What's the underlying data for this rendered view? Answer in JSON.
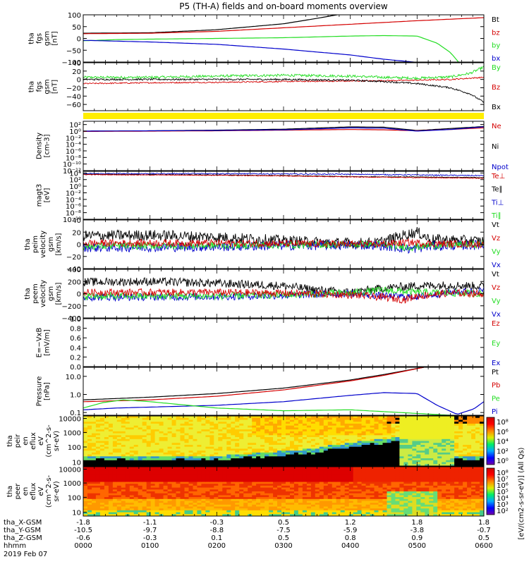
{
  "title": "P5 (TH-A) fields and on-board moments overview",
  "colors": {
    "black": "#000000",
    "red": "#d40000",
    "green": "#22dd22",
    "blue": "#0000cc",
    "yellow": "#ffee00"
  },
  "date": "2019 Feb 07",
  "ephemeris": {
    "labels": [
      "tha_X-GSM",
      "tha_Y-GSM",
      "tha_Z-GSM",
      "hhmm"
    ],
    "x": [
      "-1.8",
      "-1.1",
      "-0.3",
      "0.5",
      "1.2",
      "1.8",
      "1.8"
    ],
    "y": [
      "-10.5",
      "-9.7",
      "-8.8",
      "-7.5",
      "-5.9",
      "-3.8",
      "-0.7"
    ],
    "z": [
      "-0.6",
      "-0.3",
      "0.1",
      "0.5",
      "0.8",
      "0.9",
      "0.5"
    ],
    "hhmm": [
      "0000",
      "0100",
      "0200",
      "0300",
      "0400",
      "0500",
      "0600"
    ]
  },
  "colorbar_label": "[eV/(cm2-s-sr-eV)] (All Qs)",
  "chart_data": [
    {
      "type": "line",
      "name": "fgs",
      "ylabel": [
        "tha",
        "fgs",
        "gsm",
        "[nT]"
      ],
      "ylim": [
        -100,
        100
      ],
      "yticks": [
        "100",
        "50",
        "0",
        "−50",
        "−100"
      ],
      "legend": [
        {
          "t": "Bt",
          "c": "#000000"
        },
        {
          "t": "bz",
          "c": "#d40000"
        },
        {
          "t": "by",
          "c": "#22dd22"
        },
        {
          "t": "bx",
          "c": "#0000cc"
        }
      ],
      "series": [
        {
          "name": "Bt",
          "color": "#000000",
          "x": [
            0,
            1,
            2,
            3,
            3.5,
            4,
            4.4
          ],
          "y": [
            22,
            24,
            37,
            62,
            85,
            110,
            140
          ]
        },
        {
          "name": "bz",
          "color": "#d40000",
          "x": [
            0,
            1,
            2,
            3,
            4,
            5,
            6
          ],
          "y": [
            20,
            22,
            30,
            45,
            60,
            75,
            88
          ]
        },
        {
          "name": "by",
          "color": "#22dd22",
          "x": [
            0,
            0.5,
            1,
            2,
            3,
            4,
            4.5,
            5,
            5.3,
            5.5,
            5.65
          ],
          "y": [
            -10,
            -5,
            -3,
            0,
            3,
            10,
            12,
            10,
            -20,
            -60,
            -110
          ]
        },
        {
          "name": "bx",
          "color": "#0000cc",
          "x": [
            0,
            1,
            2,
            3,
            4,
            4.5,
            4.95
          ],
          "y": [
            -8,
            -15,
            -25,
            -45,
            -70,
            -88,
            -100
          ]
        }
      ]
    },
    {
      "type": "line",
      "name": "fgm",
      "ylabel": [
        "tha",
        "fgs",
        "gsm",
        "[nT]"
      ],
      "ylim": [
        -75,
        40
      ],
      "yticks": [
        "40",
        "20",
        "0",
        "−20",
        "−40",
        "−60"
      ],
      "legend": [
        {
          "t": "By",
          "c": "#22dd22"
        },
        {
          "t": "Bz",
          "c": "#d40000"
        },
        {
          "t": "Bx",
          "c": "#000000"
        }
      ],
      "series": [
        {
          "name": "By",
          "color": "#22dd22",
          "x": [
            0,
            1,
            2,
            3,
            4,
            4.5,
            5,
            5.5,
            5.8,
            6
          ],
          "y": [
            5,
            5,
            8,
            10,
            8,
            5,
            3,
            6,
            15,
            30
          ],
          "noise": 3
        },
        {
          "name": "Bz",
          "color": "#d40000",
          "x": [
            0,
            1,
            2,
            3,
            4,
            5,
            5.5,
            6
          ],
          "y": [
            -10,
            -8,
            -7,
            -5,
            -4,
            -2,
            0,
            5
          ],
          "noise": 1.5
        },
        {
          "name": "Bx",
          "color": "#000000",
          "x": [
            0,
            1,
            2,
            3,
            4,
            4.5,
            5,
            5.5,
            5.8,
            6
          ],
          "y": [
            0,
            0,
            0,
            0,
            -2,
            -5,
            -10,
            -20,
            -35,
            -55
          ],
          "noise": 2
        }
      ]
    },
    {
      "type": "line",
      "name": "density",
      "ylabel": [
        "Density",
        "[cm-3]"
      ],
      "ylim": [
        -12,
        3
      ],
      "log": true,
      "yticks": [
        "10²",
        "10⁰",
        "10⁻²",
        "10⁻⁴",
        "10⁻⁶",
        "10⁻⁸",
        "10⁻¹⁰",
        "10⁻¹²"
      ],
      "legend": [
        {
          "t": "Ne",
          "c": "#d40000"
        },
        {
          "t": "Ni",
          "c": "#000000"
        },
        {
          "t": "Npot",
          "c": "#0000cc"
        }
      ],
      "series": [
        {
          "name": "Ni",
          "color": "#000000",
          "x": [
            0,
            1,
            2,
            3,
            4,
            4.5,
            5,
            5.5,
            6
          ],
          "y": [
            0,
            0.1,
            0.3,
            0.6,
            1.3,
            1.2,
            0.2,
            0.8,
            1.4
          ]
        },
        {
          "name": "Ne",
          "color": "#d40000",
          "x": [
            0,
            1,
            2,
            3,
            4,
            4.5,
            5,
            5.5,
            6
          ],
          "y": [
            -0.1,
            0,
            0.1,
            0.3,
            0.5,
            0.4,
            0.1,
            0.5,
            1.0
          ]
        },
        {
          "name": "Npot",
          "color": "#0000cc",
          "x": [
            0,
            1,
            2,
            3,
            4,
            4.5,
            5,
            5.5,
            6
          ],
          "y": [
            0,
            0.1,
            0.2,
            0.4,
            1.0,
            0.9,
            0,
            0.5,
            1.3
          ]
        }
      ]
    },
    {
      "type": "line",
      "name": "temperature",
      "ylabel": [
        "magt3",
        "[eV]"
      ],
      "ylim": [
        -10,
        4.5
      ],
      "log": true,
      "yticks": [
        "10⁴",
        "10²",
        "10⁰",
        "10⁻²",
        "10⁻⁴",
        "10⁻⁶",
        "10⁻⁸",
        "10⁻¹⁰"
      ],
      "legend": [
        {
          "t": "Te⊥",
          "c": "#d40000"
        },
        {
          "t": "Te∥",
          "c": "#000000"
        },
        {
          "t": "Ti⊥",
          "c": "#0000cc"
        },
        {
          "t": "Ti∥",
          "c": "#22dd22"
        }
      ],
      "series": [
        {
          "name": "Ti⊥",
          "color": "#0000cc",
          "x": [
            0,
            1,
            2,
            3,
            4,
            5,
            5.5,
            6
          ],
          "y": [
            3.8,
            3.8,
            3.8,
            3.7,
            3.6,
            3.4,
            3.3,
            3.2
          ],
          "noise": 0.15
        },
        {
          "name": "Te∥",
          "color": "#000000",
          "x": [
            0,
            1,
            2,
            3,
            4,
            5,
            6
          ],
          "y": [
            3.6,
            3.5,
            3.4,
            3.2,
            2.9,
            2.8,
            2.6
          ],
          "noise": 0.1
        },
        {
          "name": "Te⊥",
          "color": "#d40000",
          "x": [
            0,
            1,
            2,
            3,
            4,
            5,
            6
          ],
          "y": [
            3.5,
            3.4,
            3.3,
            3.1,
            2.8,
            2.6,
            2.4
          ],
          "noise": 0.1
        }
      ]
    },
    {
      "type": "line",
      "name": "peim",
      "ylabel": [
        "tha",
        "peim",
        "velocity",
        "gsm",
        "[km/s]"
      ],
      "ylim": [
        -40,
        40
      ],
      "yticks": [
        "40",
        "20",
        "0",
        "−20",
        "−40"
      ],
      "legend": [
        {
          "t": "Vt",
          "c": "#000000"
        },
        {
          "t": "Vz",
          "c": "#d40000"
        },
        {
          "t": "Vy",
          "c": "#22dd22"
        },
        {
          "t": "Vx",
          "c": "#0000cc"
        }
      ],
      "series": [
        {
          "name": "Vt",
          "color": "#000000",
          "x": [
            0,
            1,
            2,
            3,
            3.8,
            4.4,
            4.8,
            5,
            5.2,
            6
          ],
          "y": [
            14,
            15,
            12,
            6,
            2,
            2,
            15,
            20,
            8,
            5
          ],
          "noise": 9
        },
        {
          "name": "Vx",
          "color": "#0000cc",
          "x": [
            0,
            2,
            3,
            4.4,
            4.9,
            5.2,
            6
          ],
          "y": [
            -5,
            -4,
            -2,
            -1,
            -8,
            -3,
            -1
          ],
          "noise": 8
        },
        {
          "name": "Vy",
          "color": "#22dd22",
          "x": [
            0,
            2,
            3,
            4.4,
            4.9,
            5.2,
            6
          ],
          "y": [
            -3,
            -2,
            -1,
            0,
            -5,
            -2,
            0
          ],
          "noise": 6
        },
        {
          "name": "Vz",
          "color": "#d40000",
          "x": [
            0,
            2,
            3,
            4.4,
            4.9,
            5.2,
            6
          ],
          "y": [
            2,
            2,
            1,
            0,
            3,
            1,
            0
          ],
          "noise": 6
        }
      ]
    },
    {
      "type": "line",
      "name": "peem",
      "ylabel": [
        "tha",
        "peem",
        "velocity",
        "gsm",
        "[km/s]"
      ],
      "ylim": [
        -400,
        400
      ],
      "yticks": [
        "400",
        "200",
        "0",
        "−200",
        "−400"
      ],
      "legend": [
        {
          "t": "Vt",
          "c": "#000000"
        },
        {
          "t": "Vz",
          "c": "#d40000"
        },
        {
          "t": "Vy",
          "c": "#22dd22"
        },
        {
          "t": "Vx",
          "c": "#0000cc"
        }
      ],
      "series": [
        {
          "name": "Vt",
          "color": "#000000",
          "x": [
            0,
            1,
            2,
            3,
            3.5,
            4,
            4.5,
            5,
            5.5,
            6
          ],
          "y": [
            190,
            200,
            170,
            130,
            60,
            20,
            90,
            130,
            140,
            120
          ],
          "noise": 70
        },
        {
          "name": "Vx",
          "color": "#0000cc",
          "x": [
            0,
            2,
            3,
            4,
            4.5,
            5,
            5.5,
            6
          ],
          "y": [
            -60,
            -50,
            -30,
            0,
            -40,
            -50,
            20,
            50
          ],
          "noise": 60
        },
        {
          "name": "Vy",
          "color": "#22dd22",
          "x": [
            0,
            2,
            3,
            4,
            4.5,
            5,
            5.5,
            6
          ],
          "y": [
            -40,
            -40,
            -20,
            10,
            60,
            20,
            10,
            0
          ],
          "noise": 60
        },
        {
          "name": "Vz",
          "color": "#d40000",
          "x": [
            0,
            2,
            3,
            4,
            4.5,
            4.8,
            5,
            5.5,
            6
          ],
          "y": [
            20,
            20,
            10,
            -20,
            -60,
            -100,
            -40,
            10,
            0
          ],
          "noise": 60
        }
      ]
    },
    {
      "type": "line",
      "name": "efield",
      "ylabel": [
        "E=−VxB",
        "[mV/m]"
      ],
      "ylim": [
        0,
        1
      ],
      "yticks": [
        "1.0",
        "0.8",
        "0.6",
        "0.4",
        "0.2",
        "0.0"
      ],
      "legend": [
        {
          "t": "Ez",
          "c": "#d40000"
        },
        {
          "t": "Ey",
          "c": "#22dd22"
        },
        {
          "t": "Ex",
          "c": "#0000cc"
        }
      ],
      "series": []
    },
    {
      "type": "line",
      "name": "pressure",
      "ylabel": [
        "Pressure",
        "[nPa]"
      ],
      "ylim": [
        -1.15,
        1.5
      ],
      "log": true,
      "yticks": [
        "10.0",
        "1.0",
        "0.1"
      ],
      "legend": [
        {
          "t": "Pt",
          "c": "#000000"
        },
        {
          "t": "Pb",
          "c": "#d40000"
        },
        {
          "t": "Pe",
          "c": "#22dd22"
        },
        {
          "t": "Pi",
          "c": "#0000cc"
        }
      ],
      "series": [
        {
          "name": "Pt",
          "color": "#000000",
          "x": [
            0,
            1,
            2,
            3,
            4,
            4.5,
            5.1
          ],
          "y": [
            -0.3,
            -0.15,
            0.05,
            0.35,
            0.8,
            1.1,
            1.5
          ]
        },
        {
          "name": "Pb",
          "color": "#d40000",
          "x": [
            0,
            1,
            2,
            3,
            4,
            4.5,
            5.1
          ],
          "y": [
            -0.4,
            -0.3,
            -0.1,
            0.25,
            0.75,
            1.05,
            1.5
          ]
        },
        {
          "name": "Pi",
          "color": "#0000cc",
          "x": [
            0,
            0.5,
            1,
            2,
            3,
            4,
            4.5,
            5,
            5.3,
            5.6,
            5.85,
            6
          ],
          "y": [
            -0.85,
            -0.75,
            -0.7,
            -0.6,
            -0.4,
            -0.05,
            0.1,
            0.05,
            -0.6,
            -1.1,
            -0.8,
            -0.4
          ]
        },
        {
          "name": "Pe",
          "color": "#22dd22",
          "x": [
            0,
            0.3,
            0.6,
            1,
            2,
            3,
            4,
            4.5,
            5,
            5.5,
            6
          ],
          "y": [
            -0.75,
            -0.45,
            -0.3,
            -0.4,
            -0.75,
            -0.9,
            -0.85,
            -0.95,
            -1.05,
            -1.15,
            -1.2
          ]
        }
      ]
    },
    {
      "type": "heatmap",
      "name": "peir",
      "ylabel": [
        "tha",
        "peir",
        "en",
        "eflux",
        "eV",
        "(cm^2-s-",
        "sr-eV)"
      ],
      "yticks": [
        "10000",
        "1000",
        "100",
        "10"
      ],
      "variant": "ion",
      "colorbar_ticks": [
        "10⁸",
        "10⁶",
        "10⁴",
        "10²",
        "10⁰"
      ]
    },
    {
      "type": "heatmap",
      "name": "peer",
      "ylabel": [
        "tha",
        "peer",
        "en",
        "eflux",
        "eV",
        "(cm^2-s-",
        "sr-eV)"
      ],
      "yticks": [
        "10000",
        "1000",
        "100",
        "10"
      ],
      "variant": "ele",
      "colorbar_ticks": [
        "10⁸",
        "10⁷",
        "10⁶",
        "10⁵",
        "10⁴",
        "10³",
        "10²"
      ]
    }
  ]
}
